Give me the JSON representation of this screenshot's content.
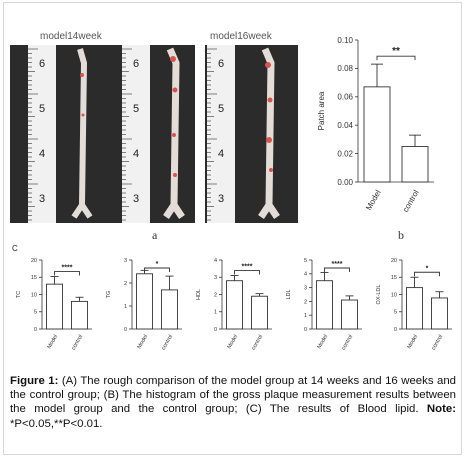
{
  "photos": {
    "label_14": "model14week",
    "label_16": "model16week",
    "ruler_numbers_top": "6",
    "ruler_numbers": [
      "6",
      "5",
      "4",
      "3"
    ],
    "panel_a": "a",
    "colors": {
      "background": "#2b2b2b",
      "ruler": "#f2f2f2",
      "vessel": "#e4ddd7",
      "plaque": "#d9534f"
    }
  },
  "panel_b": {
    "letter": "b"
  },
  "panel_c": {
    "letter": "C"
  },
  "caption": {
    "lead": "Figure 1:",
    "body": " (A) The rough comparison of the model group at 14 weeks and 16 weeks and the control group; (B) The histogram of the gross plaque measurement results between the model group and the control group; (C) The results of Blood lipid. ",
    "note_label": "Note:",
    "note_text": " *P<0.05,**P<0.01."
  },
  "chart_data": [
    {
      "id": "patch-area",
      "type": "bar",
      "categories": [
        "Model",
        "control"
      ],
      "values": [
        0.067,
        0.025
      ],
      "errors": [
        0.016,
        0.008
      ],
      "ylabel": "Patch area",
      "ylim": [
        0,
        0.1
      ],
      "yticks": [
        "0.00",
        "0.02",
        "0.04",
        "0.06",
        "0.08",
        "0.10"
      ],
      "significance": "**"
    },
    {
      "id": "tc",
      "type": "bar",
      "categories": [
        "Model",
        "control"
      ],
      "values": [
        13,
        8
      ],
      "errors": [
        2.2,
        1.2
      ],
      "ylabel": "TC",
      "ylim": [
        0,
        20
      ],
      "yticks": [
        "0",
        "5",
        "10",
        "15",
        "20"
      ],
      "significance": "****"
    },
    {
      "id": "tg",
      "type": "bar",
      "categories": [
        "Model",
        "control"
      ],
      "values": [
        2.4,
        1.7
      ],
      "errors": [
        0.15,
        0.6
      ],
      "ylabel": "TG",
      "ylim": [
        0,
        3
      ],
      "yticks": [
        "0",
        "1",
        "2",
        "3"
      ],
      "significance": "*"
    },
    {
      "id": "hdl",
      "type": "bar",
      "categories": [
        "Model",
        "control"
      ],
      "values": [
        2.8,
        1.9
      ],
      "errors": [
        0.3,
        0.15
      ],
      "ylabel": "HDL",
      "ylim": [
        0,
        4
      ],
      "yticks": [
        "0",
        "1",
        "2",
        "3",
        "4"
      ],
      "significance": "****"
    },
    {
      "id": "ldl",
      "type": "bar",
      "categories": [
        "Model",
        "control"
      ],
      "values": [
        3.5,
        2.1
      ],
      "errors": [
        0.6,
        0.3
      ],
      "ylabel": "LDL",
      "ylim": [
        0,
        5
      ],
      "yticks": [
        "0",
        "1",
        "2",
        "3",
        "4",
        "5"
      ],
      "significance": "****"
    },
    {
      "id": "ox-ldl",
      "type": "bar",
      "categories": [
        "Model",
        "control"
      ],
      "values": [
        12,
        9
      ],
      "errors": [
        3,
        1.8
      ],
      "ylabel": "OX-LDL",
      "ylim": [
        0,
        20
      ],
      "yticks": [
        "0",
        "5",
        "10",
        "15",
        "20"
      ],
      "significance": "*"
    }
  ]
}
